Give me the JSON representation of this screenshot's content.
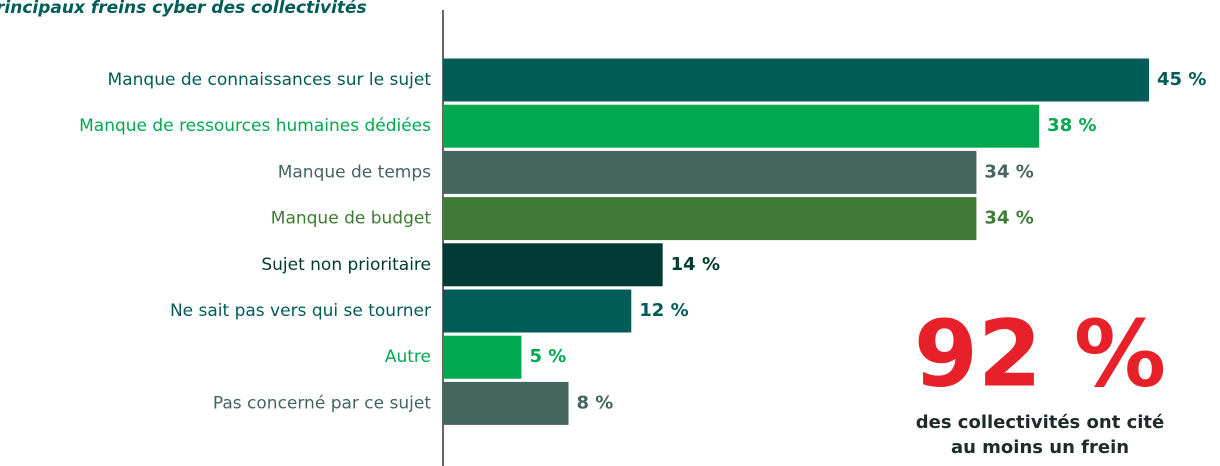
{
  "chart_data": {
    "type": "hbar",
    "title": "rincipaux freins cyber des collectivités",
    "categories": [
      "Manque de connaissances sur le sujet",
      "Manque de ressources humaines dédiées",
      "Manque de temps",
      "Manque de budget",
      "Sujet non prioritaire",
      "Ne sait pas vers qui se tourner",
      "Autre",
      "Pas concerné par ce sujet"
    ],
    "values": [
      45,
      38,
      34,
      34,
      14,
      12,
      5,
      8
    ],
    "value_labels": [
      "45 %",
      "38 %",
      "34 %",
      "34 %",
      "14 %",
      "12 %",
      "5 %",
      "8 %"
    ],
    "colors": [
      "#005c57",
      "#00a94f",
      "#45665f",
      "#3e7b34",
      "#003a35",
      "#005c57",
      "#00a94f",
      "#45665f"
    ],
    "xlim": [
      0,
      45
    ],
    "annotation": {
      "headline": "92 %",
      "lines": [
        "des collectivités ont cité",
        "au moins un frein"
      ]
    }
  }
}
